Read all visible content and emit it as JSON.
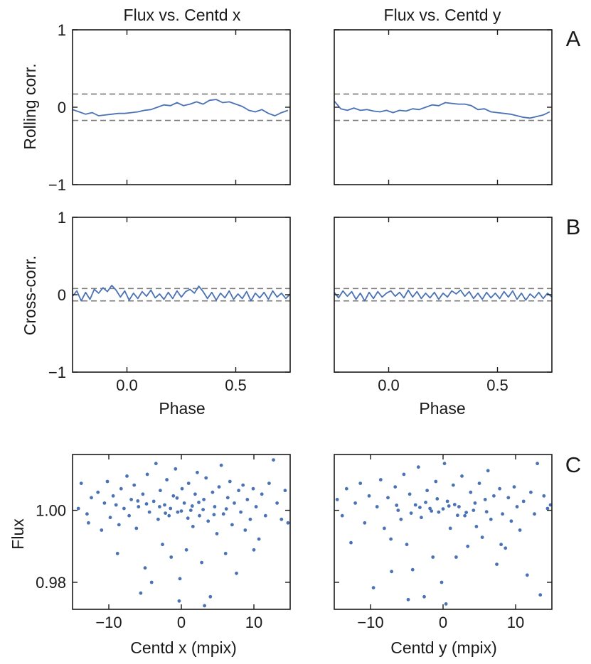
{
  "chart_data": [
    {
      "id": "A-left",
      "type": "line",
      "title": "Flux vs. Centd x",
      "ylabel": "Rolling corr.",
      "xlabel": "",
      "panel_tag": "A",
      "xlim": [
        -0.25,
        0.75
      ],
      "ylim": [
        -1,
        1
      ],
      "x_ticks": [
        0.0,
        0.5
      ],
      "x_tick_labels": [],
      "y_ticks": [
        -1,
        0,
        1
      ],
      "y_tick_labels": [
        "−1",
        "0",
        "1"
      ],
      "thresholds": [
        0.17,
        -0.17
      ],
      "series": [
        {
          "name": "rolling correlation",
          "x": [
            -0.25,
            -0.22,
            -0.19,
            -0.16,
            -0.13,
            -0.1,
            -0.07,
            -0.04,
            -0.01,
            0.02,
            0.05,
            0.08,
            0.11,
            0.14,
            0.17,
            0.2,
            0.23,
            0.26,
            0.29,
            0.32,
            0.35,
            0.38,
            0.41,
            0.44,
            0.47,
            0.5,
            0.53,
            0.56,
            0.59,
            0.62,
            0.65,
            0.68,
            0.71,
            0.74
          ],
          "y": [
            -0.03,
            -0.06,
            -0.09,
            -0.07,
            -0.11,
            -0.1,
            -0.09,
            -0.08,
            -0.08,
            -0.07,
            -0.06,
            -0.04,
            -0.03,
            0.0,
            0.03,
            0.02,
            0.06,
            0.02,
            0.04,
            0.07,
            0.04,
            0.09,
            0.1,
            0.06,
            0.07,
            0.04,
            0.01,
            -0.04,
            -0.06,
            -0.03,
            -0.08,
            -0.11,
            -0.07,
            -0.04
          ]
        }
      ]
    },
    {
      "id": "A-right",
      "type": "line",
      "title": "Flux vs. Centd y",
      "ylabel": "",
      "xlabel": "",
      "panel_tag": "",
      "xlim": [
        -0.25,
        0.75
      ],
      "ylim": [
        -1,
        1
      ],
      "x_ticks": [
        0.0,
        0.5
      ],
      "x_tick_labels": [],
      "y_ticks": [
        -1,
        0,
        1
      ],
      "y_tick_labels": [],
      "thresholds": [
        0.17,
        -0.17
      ],
      "series": [
        {
          "name": "rolling correlation",
          "x": [
            -0.25,
            -0.22,
            -0.19,
            -0.16,
            -0.13,
            -0.1,
            -0.07,
            -0.04,
            -0.01,
            0.02,
            0.05,
            0.08,
            0.11,
            0.14,
            0.17,
            0.2,
            0.23,
            0.26,
            0.29,
            0.32,
            0.35,
            0.38,
            0.41,
            0.44,
            0.47,
            0.5,
            0.53,
            0.56,
            0.59,
            0.62,
            0.65,
            0.68,
            0.71,
            0.74
          ],
          "y": [
            0.08,
            -0.02,
            -0.04,
            -0.01,
            -0.04,
            -0.03,
            -0.05,
            -0.06,
            -0.04,
            -0.07,
            -0.04,
            -0.05,
            -0.02,
            -0.03,
            0.0,
            0.03,
            0.02,
            0.06,
            0.05,
            0.04,
            0.04,
            0.02,
            -0.03,
            -0.02,
            -0.06,
            -0.07,
            -0.08,
            -0.09,
            -0.11,
            -0.13,
            -0.14,
            -0.12,
            -0.1,
            -0.06
          ]
        }
      ]
    },
    {
      "id": "B-left",
      "type": "line",
      "title": "",
      "ylabel": "Cross-corr.",
      "xlabel": "Phase",
      "panel_tag": "B",
      "xlim": [
        -0.25,
        0.75
      ],
      "ylim": [
        -1,
        1
      ],
      "x_ticks": [
        0.0,
        0.5
      ],
      "x_tick_labels": [
        "0.0",
        "0.5"
      ],
      "y_ticks": [
        -1,
        0,
        1
      ],
      "y_tick_labels": [
        "−1",
        "0",
        "1"
      ],
      "thresholds": [
        0.08,
        -0.08
      ],
      "series": [
        {
          "name": "cross correlation",
          "x": [
            -0.25,
            -0.23,
            -0.21,
            -0.19,
            -0.17,
            -0.15,
            -0.13,
            -0.11,
            -0.09,
            -0.07,
            -0.05,
            -0.03,
            -0.01,
            0.01,
            0.03,
            0.05,
            0.07,
            0.09,
            0.11,
            0.13,
            0.15,
            0.17,
            0.19,
            0.21,
            0.23,
            0.25,
            0.27,
            0.29,
            0.31,
            0.33,
            0.35,
            0.37,
            0.39,
            0.41,
            0.43,
            0.45,
            0.47,
            0.49,
            0.51,
            0.53,
            0.55,
            0.57,
            0.59,
            0.61,
            0.63,
            0.65,
            0.67,
            0.69,
            0.71,
            0.73,
            0.75
          ],
          "y": [
            -0.02,
            0.05,
            -0.08,
            0.03,
            -0.06,
            0.07,
            0.02,
            0.09,
            0.04,
            0.12,
            0.06,
            -0.03,
            0.05,
            -0.07,
            0.02,
            -0.05,
            0.04,
            -0.02,
            0.06,
            -0.04,
            0.01,
            -0.06,
            0.03,
            -0.05,
            0.05,
            -0.03,
            0.04,
            0.07,
            0.02,
            0.11,
            0.04,
            -0.05,
            0.03,
            -0.07,
            0.02,
            -0.04,
            0.05,
            -0.06,
            0.01,
            -0.05,
            0.04,
            -0.08,
            0.02,
            -0.04,
            0.03,
            -0.06,
            0.05,
            -0.03,
            0.02,
            -0.05,
            0.01
          ]
        }
      ]
    },
    {
      "id": "B-right",
      "type": "line",
      "title": "",
      "ylabel": "",
      "xlabel": "Phase",
      "panel_tag": "",
      "xlim": [
        -0.25,
        0.75
      ],
      "ylim": [
        -1,
        1
      ],
      "x_ticks": [
        0.0,
        0.5
      ],
      "x_tick_labels": [
        "0.0",
        "0.5"
      ],
      "y_ticks": [
        -1,
        0,
        1
      ],
      "y_tick_labels": [],
      "thresholds": [
        0.08,
        -0.08
      ],
      "series": [
        {
          "name": "cross correlation",
          "x": [
            -0.25,
            -0.23,
            -0.21,
            -0.19,
            -0.17,
            -0.15,
            -0.13,
            -0.11,
            -0.09,
            -0.07,
            -0.05,
            -0.03,
            -0.01,
            0.01,
            0.03,
            0.05,
            0.07,
            0.09,
            0.11,
            0.13,
            0.15,
            0.17,
            0.19,
            0.21,
            0.23,
            0.25,
            0.27,
            0.29,
            0.31,
            0.33,
            0.35,
            0.37,
            0.39,
            0.41,
            0.43,
            0.45,
            0.47,
            0.49,
            0.51,
            0.53,
            0.55,
            0.57,
            0.59,
            0.61,
            0.63,
            0.65,
            0.67,
            0.69,
            0.71,
            0.73,
            0.75
          ],
          "y": [
            0.03,
            -0.04,
            0.05,
            -0.02,
            0.04,
            -0.06,
            0.02,
            -0.08,
            0.03,
            -0.05,
            0.04,
            -0.03,
            0.02,
            0.05,
            -0.02,
            0.03,
            -0.04,
            0.06,
            -0.03,
            0.04,
            -0.05,
            0.02,
            -0.04,
            0.03,
            -0.06,
            0.02,
            -0.03,
            0.05,
            0.01,
            0.06,
            -0.02,
            0.04,
            -0.05,
            0.02,
            -0.06,
            0.03,
            -0.04,
            0.02,
            -0.05,
            0.04,
            -0.03,
            0.05,
            -0.06,
            0.02,
            -0.07,
            0.01,
            -0.04,
            0.03,
            -0.05,
            0.02,
            -0.03
          ]
        }
      ]
    },
    {
      "id": "C-left",
      "type": "scatter",
      "title": "",
      "ylabel": "Flux",
      "xlabel": "Centd x (mpix)",
      "panel_tag": "C",
      "xlim": [
        -15,
        15
      ],
      "ylim": [
        0.9725,
        1.0155
      ],
      "x_ticks": [
        -10,
        0,
        10
      ],
      "x_tick_labels": [
        "−10",
        "0",
        "10"
      ],
      "y_ticks": [
        0.98,
        1.0
      ],
      "y_tick_labels": [
        "0.98",
        "1.00"
      ],
      "points": [
        [
          -14.2,
          1.0005
        ],
        [
          -13.8,
          1.0075
        ],
        [
          -13.0,
          0.999
        ],
        [
          -12.4,
          1.0035
        ],
        [
          -12.8,
          0.9965
        ],
        [
          -11.5,
          1.005
        ],
        [
          -11.0,
          0.9945
        ],
        [
          -10.6,
          1.002
        ],
        [
          -10.2,
          1.008
        ],
        [
          -9.8,
          0.998
        ],
        [
          -9.4,
          1.004
        ],
        [
          -9.0,
          1.0015
        ],
        [
          -8.6,
          0.996
        ],
        [
          -8.3,
          1.006
        ],
        [
          -7.9,
          1.0005
        ],
        [
          -7.5,
          1.0095
        ],
        [
          -7.2,
          0.9985
        ],
        [
          -6.9,
          1.003
        ],
        [
          -6.5,
          1.007
        ],
        [
          -6.2,
          0.995
        ],
        [
          -5.9,
          1.001
        ],
        [
          -5.6,
          0.977
        ],
        [
          -5.3,
          1.0045
        ],
        [
          -5.0,
          0.984
        ],
        [
          -4.7,
          1.01
        ],
        [
          -4.4,
          0.9995
        ],
        [
          -4.1,
          0.98
        ],
        [
          -3.8,
          1.0025
        ],
        [
          -3.5,
          1.013
        ],
        [
          -3.2,
          0.9975
        ],
        [
          -2.9,
          1.0055
        ],
        [
          -2.6,
          0.9905
        ],
        [
          -2.3,
          1.0015
        ],
        [
          -2.0,
          1.0085
        ],
        [
          -1.7,
          0.9985
        ],
        [
          -1.4,
          0.987
        ],
        [
          -1.1,
          1.004
        ],
        [
          -0.8,
          1.0115
        ],
        [
          -0.5,
          0.9995
        ],
        [
          -0.2,
          0.981
        ],
        [
          0.1,
          1.006
        ],
        [
          0.4,
          1.002
        ],
        [
          0.7,
          0.989
        ],
        [
          1.0,
          1.0075
        ],
        [
          1.3,
          1.0
        ],
        [
          1.6,
          0.9955
        ],
        [
          1.9,
          1.0045
        ],
        [
          2.2,
          1.0105
        ],
        [
          2.5,
          0.9985
        ],
        [
          2.8,
          0.9855
        ],
        [
          3.1,
          1.003
        ],
        [
          3.4,
          1.009
        ],
        [
          3.7,
          0.997
        ],
        [
          4.0,
          0.976
        ],
        [
          4.3,
          1.005
        ],
        [
          4.6,
          1.001
        ],
        [
          4.9,
          0.9935
        ],
        [
          5.2,
          1.0065
        ],
        [
          5.5,
          1.0125
        ],
        [
          5.8,
          0.999
        ],
        [
          6.1,
          0.988
        ],
        [
          6.4,
          1.0035
        ],
        [
          6.7,
          1.008
        ],
        [
          7.0,
          0.996
        ],
        [
          7.3,
          1.002
        ],
        [
          7.6,
          0.9825
        ],
        [
          7.9,
          1.0055
        ],
        [
          8.2,
          0.9995
        ],
        [
          8.5,
          1.007
        ],
        [
          8.8,
          0.9945
        ],
        [
          9.1,
          1.003
        ],
        [
          9.5,
          0.9975
        ],
        [
          9.9,
          1.006
        ],
        [
          10.3,
          1.001
        ],
        [
          10.7,
          0.992
        ],
        [
          11.1,
          1.0045
        ],
        [
          11.6,
          0.9985
        ],
        [
          12.1,
          1.0075
        ],
        [
          12.7,
          1.014
        ],
        [
          13.2,
          1.002
        ],
        [
          13.8,
          0.9975
        ],
        [
          14.3,
          1.0055
        ],
        [
          14.7,
          0.9965
        ],
        [
          -3.0,
          1.001
        ],
        [
          -1.5,
          1.0005
        ],
        [
          0.0,
          0.9998
        ],
        [
          1.5,
          1.0012
        ],
        [
          3.0,
          1.0002
        ],
        [
          -2.2,
          0.9992
        ],
        [
          2.4,
          1.0022
        ],
        [
          -0.6,
          1.0034
        ],
        [
          0.9,
          0.9978
        ],
        [
          -4.8,
          1.0018
        ],
        [
          4.5,
          0.9988
        ],
        [
          -6.0,
          1.0026
        ],
        [
          6.2,
          1.0004
        ],
        [
          -0.3,
          0.9748
        ],
        [
          3.2,
          0.9735
        ],
        [
          -8.8,
          0.988
        ],
        [
          10.0,
          0.989
        ]
      ]
    },
    {
      "id": "C-right",
      "type": "scatter",
      "title": "",
      "ylabel": "",
      "xlabel": "Centd y (mpix)",
      "panel_tag": "",
      "xlim": [
        -15,
        15
      ],
      "ylim": [
        0.9725,
        1.0155
      ],
      "x_ticks": [
        -10,
        0,
        10
      ],
      "x_tick_labels": [
        "−10",
        "0",
        "10"
      ],
      "y_ticks": [
        0.98,
        1.0
      ],
      "y_tick_labels": [],
      "points": [
        [
          -14.6,
          1.003
        ],
        [
          -13.9,
          0.9985
        ],
        [
          -13.3,
          1.006
        ],
        [
          -12.7,
          0.991
        ],
        [
          -12.1,
          1.002
        ],
        [
          -11.4,
          1.0075
        ],
        [
          -10.8,
          0.9965
        ],
        [
          -10.2,
          1.004
        ],
        [
          -9.6,
          0.9785
        ],
        [
          -9.1,
          1.001
        ],
        [
          -8.6,
          1.0085
        ],
        [
          -8.1,
          0.995
        ],
        [
          -7.6,
          1.0035
        ],
        [
          -7.1,
          0.983
        ],
        [
          -6.6,
          1.0065
        ],
        [
          -6.2,
          1.0
        ],
        [
          -5.8,
          0.9975
        ],
        [
          -5.4,
          1.01
        ],
        [
          -5.0,
          0.9905
        ],
        [
          -4.6,
          1.0045
        ],
        [
          -4.2,
          0.9835
        ],
        [
          -3.8,
          1.0015
        ],
        [
          -3.4,
          1.012
        ],
        [
          -3.0,
          0.998
        ],
        [
          -2.6,
          0.976
        ],
        [
          -2.2,
          1.0055
        ],
        [
          -1.8,
          1.0005
        ],
        [
          -1.4,
          0.987
        ],
        [
          -1.0,
          1.008
        ],
        [
          -0.6,
          0.9995
        ],
        [
          -0.2,
          0.98
        ],
        [
          0.2,
          1.013
        ],
        [
          0.6,
          1.0025
        ],
        [
          1.0,
          0.995
        ],
        [
          1.4,
          1.007
        ],
        [
          1.8,
          0.987
        ],
        [
          2.2,
          1.001
        ],
        [
          2.6,
          1.0095
        ],
        [
          3.0,
          0.9985
        ],
        [
          3.4,
          0.99
        ],
        [
          3.8,
          1.005
        ],
        [
          4.2,
          1.0
        ],
        [
          4.6,
          0.9955
        ],
        [
          5.0,
          1.0075
        ],
        [
          5.4,
          0.9925
        ],
        [
          5.8,
          1.003
        ],
        [
          6.2,
          1.011
        ],
        [
          6.6,
          0.9975
        ],
        [
          7.0,
          1.004
        ],
        [
          7.4,
          0.985
        ],
        [
          7.8,
          1.006
        ],
        [
          8.2,
          0.999
        ],
        [
          8.6,
          0.9895
        ],
        [
          9.0,
          1.0035
        ],
        [
          9.4,
          0.997
        ],
        [
          9.8,
          1.0065
        ],
        [
          10.2,
          1.001
        ],
        [
          10.6,
          0.9945
        ],
        [
          11.1,
          1.0025
        ],
        [
          11.6,
          0.982
        ],
        [
          12.1,
          1.005
        ],
        [
          12.6,
          0.999
        ],
        [
          13.0,
          1.013
        ],
        [
          13.4,
          0.9765
        ],
        [
          13.9,
          1.004
        ],
        [
          14.4,
          1.0005
        ],
        [
          14.8,
          1.0015
        ],
        [
          -3.2,
          1.0008
        ],
        [
          -1.6,
          0.9998
        ],
        [
          0.0,
          1.0004
        ],
        [
          1.6,
          1.0016
        ],
        [
          3.2,
          0.9994
        ],
        [
          -2.4,
          1.0022
        ],
        [
          2.0,
          0.9986
        ],
        [
          -0.8,
          1.0032
        ],
        [
          0.8,
          1.0012
        ],
        [
          -4.4,
          0.9992
        ],
        [
          4.4,
          1.002
        ],
        [
          -6.4,
          1.0014
        ],
        [
          6.0,
          0.9996
        ],
        [
          0.4,
          0.974
        ],
        [
          -4.8,
          0.9752
        ],
        [
          -7.2,
          0.992
        ],
        [
          8.0,
          0.9905
        ]
      ]
    }
  ]
}
